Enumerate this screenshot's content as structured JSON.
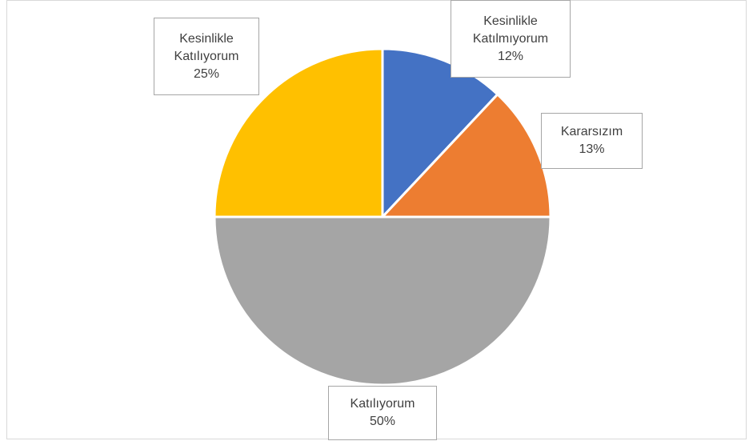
{
  "chart_data": {
    "type": "pie",
    "categories": [
      "Kesinlikle Katılmıyorum",
      "Kararsızım",
      "Katılıyorum",
      "Kesinlikle Katılıyorum"
    ],
    "values": [
      12,
      13,
      50,
      25
    ],
    "value_labels": [
      "12%",
      "13%",
      "50%",
      "25%"
    ],
    "colors": [
      "#4472c4",
      "#ed7d31",
      "#a5a5a5",
      "#ffc000"
    ]
  }
}
